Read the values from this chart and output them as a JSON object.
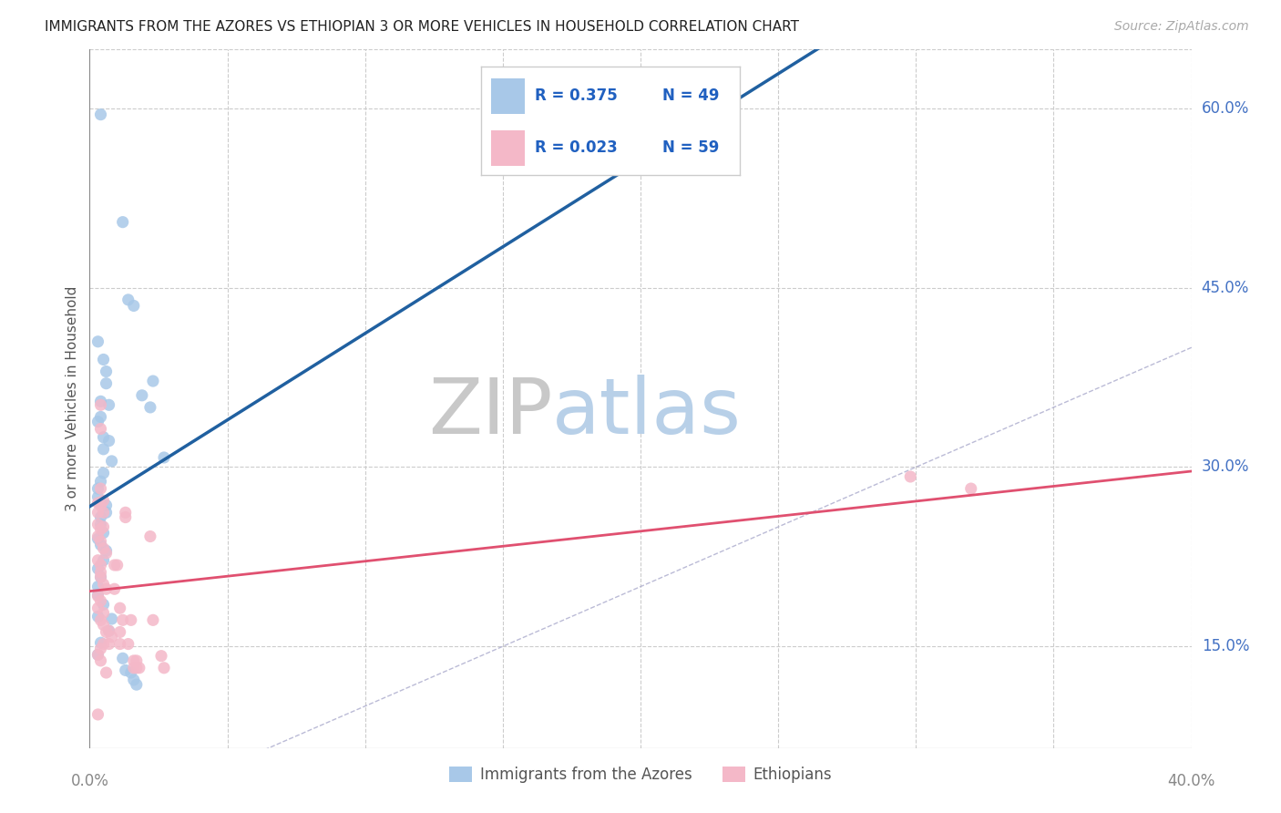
{
  "title": "IMMIGRANTS FROM THE AZORES VS ETHIOPIAN 3 OR MORE VEHICLES IN HOUSEHOLD CORRELATION CHART",
  "source": "Source: ZipAtlas.com",
  "ylabel": "3 or more Vehicles in Household",
  "yticks": [
    0.15,
    0.3,
    0.45,
    0.6
  ],
  "ytick_labels": [
    "15.0%",
    "30.0%",
    "45.0%",
    "60.0%"
  ],
  "xtick_labels": [
    "0.0%",
    "40.0%"
  ],
  "legend_r1": "R = 0.375",
  "legend_n1": "N = 49",
  "legend_r2": "R = 0.023",
  "legend_n2": "N = 59",
  "legend_label1": "Immigrants from the Azores",
  "legend_label2": "Ethiopians",
  "blue_color": "#a8c8e8",
  "pink_color": "#f4b8c8",
  "blue_line_color": "#2060a0",
  "pink_line_color": "#e05070",
  "legend_text_color": "#2060c0",
  "right_label_color": "#4472c4",
  "watermark_zip_color": "#c8c8c8",
  "watermark_atlas_color": "#b8d0e8",
  "blue_scatter": [
    [
      0.004,
      0.595
    ],
    [
      0.012,
      0.505
    ],
    [
      0.014,
      0.44
    ],
    [
      0.016,
      0.435
    ],
    [
      0.003,
      0.405
    ],
    [
      0.005,
      0.39
    ],
    [
      0.006,
      0.38
    ],
    [
      0.006,
      0.37
    ],
    [
      0.004,
      0.355
    ],
    [
      0.007,
      0.352
    ],
    [
      0.004,
      0.342
    ],
    [
      0.003,
      0.338
    ],
    [
      0.005,
      0.325
    ],
    [
      0.007,
      0.322
    ],
    [
      0.005,
      0.315
    ],
    [
      0.008,
      0.305
    ],
    [
      0.005,
      0.295
    ],
    [
      0.004,
      0.288
    ],
    [
      0.003,
      0.282
    ],
    [
      0.003,
      0.275
    ],
    [
      0.004,
      0.27
    ],
    [
      0.006,
      0.268
    ],
    [
      0.006,
      0.262
    ],
    [
      0.004,
      0.258
    ],
    [
      0.004,
      0.252
    ],
    [
      0.005,
      0.245
    ],
    [
      0.003,
      0.24
    ],
    [
      0.004,
      0.235
    ],
    [
      0.006,
      0.23
    ],
    [
      0.005,
      0.222
    ],
    [
      0.003,
      0.215
    ],
    [
      0.004,
      0.208
    ],
    [
      0.003,
      0.2
    ],
    [
      0.003,
      0.193
    ],
    [
      0.005,
      0.185
    ],
    [
      0.003,
      0.175
    ],
    [
      0.008,
      0.173
    ],
    [
      0.007,
      0.163
    ],
    [
      0.004,
      0.153
    ],
    [
      0.003,
      0.143
    ],
    [
      0.012,
      0.14
    ],
    [
      0.013,
      0.13
    ],
    [
      0.015,
      0.128
    ],
    [
      0.016,
      0.122
    ],
    [
      0.017,
      0.118
    ],
    [
      0.019,
      0.36
    ],
    [
      0.022,
      0.35
    ],
    [
      0.023,
      0.372
    ],
    [
      0.027,
      0.308
    ]
  ],
  "pink_scatter": [
    [
      0.003,
      0.27
    ],
    [
      0.003,
      0.262
    ],
    [
      0.004,
      0.352
    ],
    [
      0.004,
      0.332
    ],
    [
      0.004,
      0.282
    ],
    [
      0.005,
      0.272
    ],
    [
      0.004,
      0.268
    ],
    [
      0.005,
      0.262
    ],
    [
      0.003,
      0.252
    ],
    [
      0.005,
      0.25
    ],
    [
      0.004,
      0.248
    ],
    [
      0.003,
      0.242
    ],
    [
      0.004,
      0.238
    ],
    [
      0.005,
      0.232
    ],
    [
      0.006,
      0.228
    ],
    [
      0.003,
      0.222
    ],
    [
      0.004,
      0.218
    ],
    [
      0.004,
      0.212
    ],
    [
      0.004,
      0.208
    ],
    [
      0.005,
      0.202
    ],
    [
      0.006,
      0.198
    ],
    [
      0.003,
      0.192
    ],
    [
      0.004,
      0.188
    ],
    [
      0.003,
      0.182
    ],
    [
      0.005,
      0.178
    ],
    [
      0.004,
      0.172
    ],
    [
      0.005,
      0.168
    ],
    [
      0.006,
      0.162
    ],
    [
      0.005,
      0.152
    ],
    [
      0.004,
      0.148
    ],
    [
      0.003,
      0.143
    ],
    [
      0.004,
      0.138
    ],
    [
      0.006,
      0.128
    ],
    [
      0.003,
      0.093
    ],
    [
      0.007,
      0.163
    ],
    [
      0.007,
      0.152
    ],
    [
      0.008,
      0.158
    ],
    [
      0.009,
      0.218
    ],
    [
      0.009,
      0.198
    ],
    [
      0.01,
      0.218
    ],
    [
      0.011,
      0.182
    ],
    [
      0.011,
      0.162
    ],
    [
      0.011,
      0.152
    ],
    [
      0.012,
      0.172
    ],
    [
      0.013,
      0.262
    ],
    [
      0.013,
      0.258
    ],
    [
      0.014,
      0.152
    ],
    [
      0.015,
      0.172
    ],
    [
      0.016,
      0.138
    ],
    [
      0.016,
      0.132
    ],
    [
      0.017,
      0.138
    ],
    [
      0.017,
      0.132
    ],
    [
      0.018,
      0.132
    ],
    [
      0.022,
      0.242
    ],
    [
      0.023,
      0.172
    ],
    [
      0.026,
      0.142
    ],
    [
      0.027,
      0.132
    ],
    [
      0.298,
      0.292
    ],
    [
      0.32,
      0.282
    ]
  ],
  "xlim": [
    0.0,
    0.4
  ],
  "ylim": [
    0.065,
    0.65
  ],
  "background_color": "#ffffff",
  "grid_color": "#cccccc"
}
